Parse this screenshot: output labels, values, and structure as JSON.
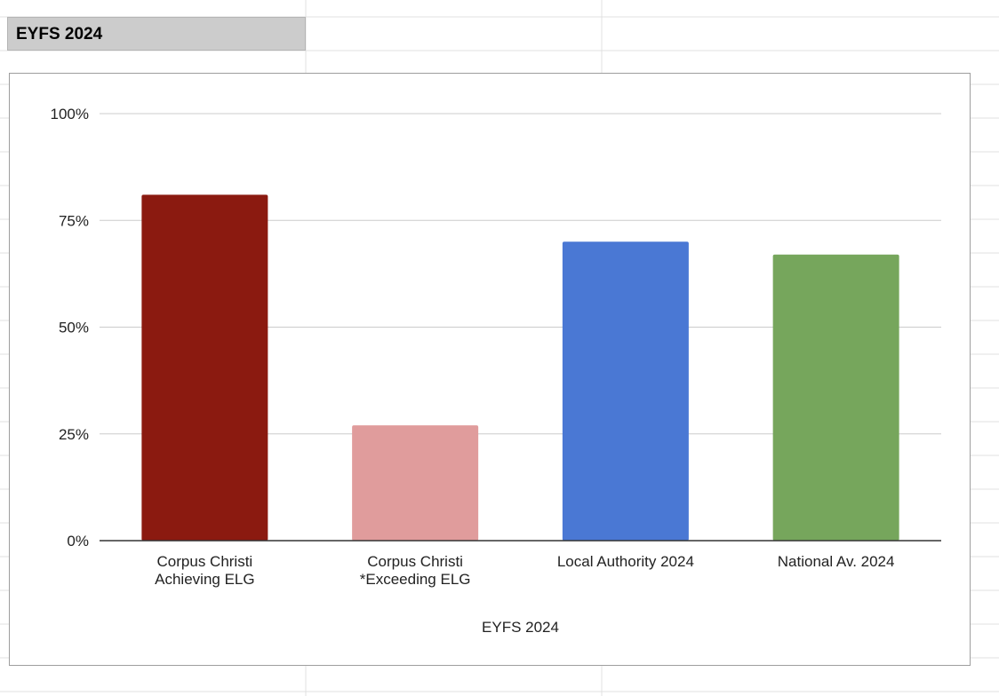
{
  "sheet": {
    "title_cell": "EYFS 2024"
  },
  "chart_data": {
    "type": "bar",
    "title": "",
    "xlabel": "EYFS 2024",
    "ylabel": "",
    "ylim": [
      0,
      1
    ],
    "yticks": [
      {
        "value": 0,
        "label": "0%"
      },
      {
        "value": 0.25,
        "label": "25%"
      },
      {
        "value": 0.5,
        "label": "50%"
      },
      {
        "value": 0.75,
        "label": "75%"
      },
      {
        "value": 1,
        "label": "100%"
      }
    ],
    "grid": true,
    "legend": "none",
    "categories": [
      [
        "Corpus Christi",
        "Achieving ELG"
      ],
      [
        "Corpus Christi",
        "*Exceeding ELG"
      ],
      [
        "Local Authority 2024"
      ],
      [
        "National Av. 2024"
      ]
    ],
    "values": [
      0.81,
      0.27,
      0.7,
      0.67
    ],
    "colors": [
      "#8b1a10",
      "#e09c9c",
      "#4a78d4",
      "#76a65c"
    ]
  }
}
